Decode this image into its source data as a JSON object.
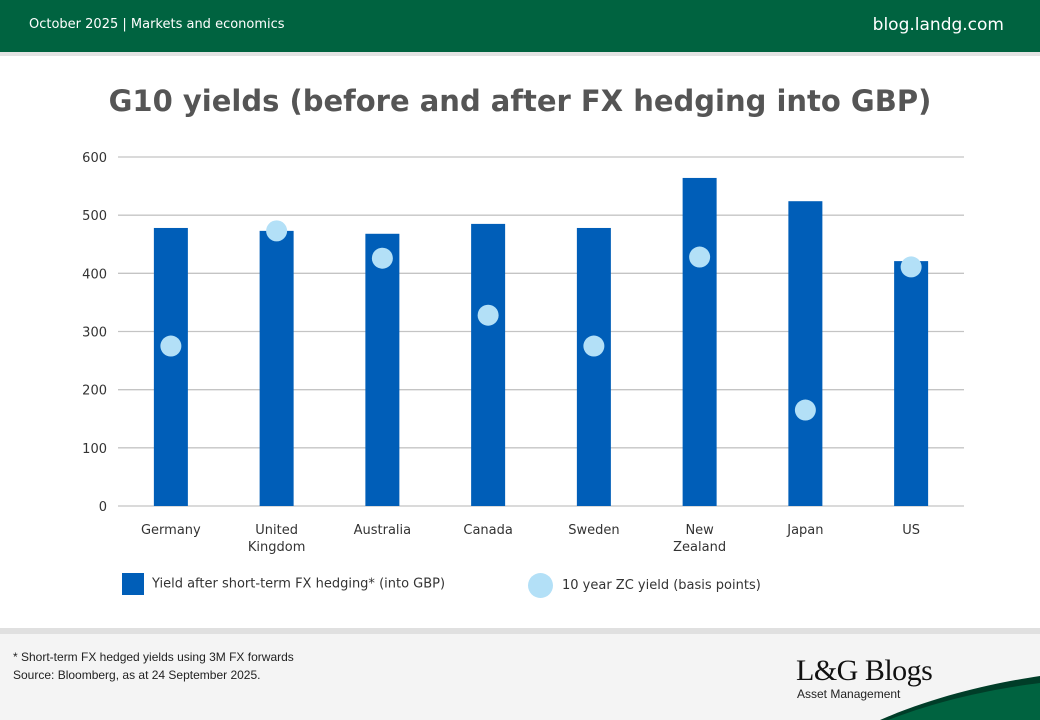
{
  "header": {
    "left_text": "October 2025 | Markets and economics",
    "right_text": "blog.landg.com"
  },
  "colors": {
    "header_bg": "#006340",
    "bar": "#005EB8",
    "dot": "#B3E0F7"
  },
  "chart_data": {
    "type": "bar",
    "title": "G10 yields (before and after FX hedging into GBP)",
    "xlabel": "",
    "ylabel": "",
    "ylim": [
      0,
      600
    ],
    "yticks": [
      "0",
      "100",
      "200",
      "300",
      "400",
      "500",
      "600"
    ],
    "grid": true,
    "legend_position": "bottom",
    "categories": [
      "Germany",
      "United Kingdom",
      "Australia",
      "Canada",
      "Sweden",
      "New Zealand",
      "Japan",
      "US"
    ],
    "category_lines": [
      [
        "Germany"
      ],
      [
        "United",
        "Kingdom"
      ],
      [
        "Australia"
      ],
      [
        "Canada"
      ],
      [
        "Sweden"
      ],
      [
        "New",
        "Zealand"
      ],
      [
        "Japan"
      ],
      [
        "US"
      ]
    ],
    "series": [
      {
        "name": "Yield after short-term FX hedging* (into GBP)",
        "kind": "bar",
        "values": [
          478,
          473,
          468,
          485,
          478,
          564,
          524,
          421
        ]
      },
      {
        "name": "10 year ZC yield (basis points)",
        "kind": "dot",
        "values": [
          275,
          473,
          426,
          328,
          275,
          428,
          165,
          411
        ]
      }
    ]
  },
  "footer": {
    "note": "* Short-term FX hedged yields using 3M FX forwards",
    "source": "Source: Bloomberg, as at 24 September 2025.",
    "brand": "L&G Blogs",
    "brand_sub": "Asset Management"
  }
}
